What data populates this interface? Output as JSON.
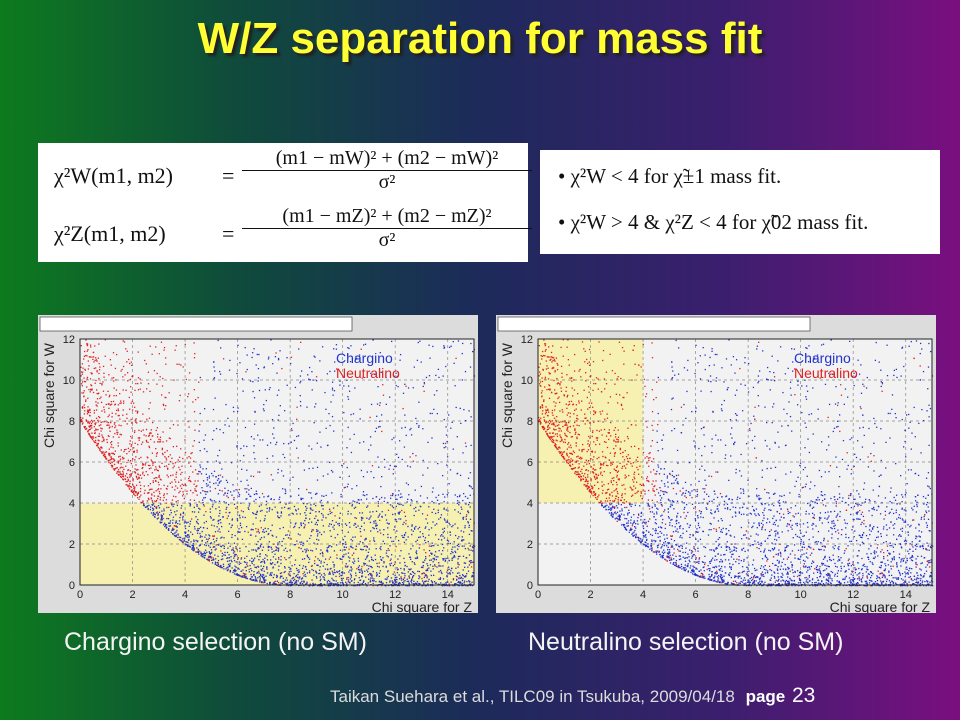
{
  "slide": {
    "title": "W/Z separation for mass fit",
    "formulas": {
      "w_lhs": "χ²W(m1, m2)",
      "w_num": "(m1 − mW)² + (m2 − mW)²",
      "z_lhs": "χ²Z(m1, m2)",
      "z_num": "(m1 − mZ)² + (m2 − mZ)²",
      "equals": "=",
      "den": "σ²"
    },
    "criteria": [
      "• χ²W < 4 for χ̃±1 mass fit.",
      "• χ²W > 4 & χ²Z < 4 for χ̃02 mass fit."
    ],
    "captions": {
      "left": "Chargino selection (no SM)",
      "right": "Neutralino selection (no SM)"
    },
    "footer": {
      "text": "Taikan Suehara et al., TILC09 in Tsukuba, 2009/04/18",
      "page_label": "page",
      "page_number": "23"
    }
  },
  "chart_data": [
    {
      "type": "scatter",
      "title": "",
      "xlabel": "Chi square for Z",
      "ylabel": "Chi square for W",
      "xlim": [
        0,
        15
      ],
      "ylim": [
        0,
        12
      ],
      "xticks": [
        "0",
        "2",
        "4",
        "6",
        "8",
        "10",
        "12",
        "14"
      ],
      "yticks": [
        "0",
        "2",
        "4",
        "6",
        "8",
        "10",
        "12"
      ],
      "legend": [
        "Chargino",
        "Neutralino"
      ],
      "legend_colors": [
        "#2233cc",
        "#dd2222"
      ],
      "legend_position": "top-right",
      "grid": true,
      "selection_region": {
        "x": [
          0,
          15
        ],
        "y": [
          0,
          4
        ]
      },
      "selection_color": "#f5efad"
    },
    {
      "type": "scatter",
      "title": "",
      "xlabel": "Chi square for Z",
      "ylabel": "Chi square for W",
      "xlim": [
        0,
        15
      ],
      "ylim": [
        0,
        12
      ],
      "xticks": [
        "0",
        "2",
        "4",
        "6",
        "8",
        "10",
        "12",
        "14"
      ],
      "yticks": [
        "0",
        "2",
        "4",
        "6",
        "8",
        "10",
        "12"
      ],
      "legend": [
        "Chargino",
        "Neutralino"
      ],
      "legend_colors": [
        "#2233cc",
        "#dd2222"
      ],
      "legend_position": "top-right",
      "grid": true,
      "selection_region": {
        "x": [
          0,
          4
        ],
        "y": [
          4,
          12
        ]
      },
      "selection_color": "#f5efad"
    }
  ]
}
